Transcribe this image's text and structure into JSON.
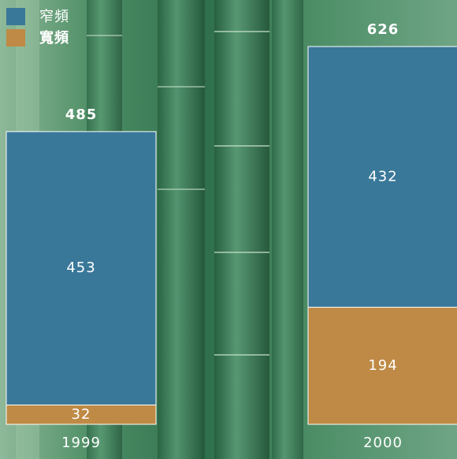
{
  "chart_data": {
    "type": "stacked-bar",
    "categories": [
      "1999",
      "2000"
    ],
    "series": [
      {
        "name": "窄頻",
        "color": "#3a7899",
        "values": [
          453,
          432
        ]
      },
      {
        "name": "寬頻",
        "color": "#bf8a45",
        "values": [
          32,
          194
        ]
      }
    ],
    "totals": [
      485,
      626
    ],
    "legend": "top-left"
  }
}
